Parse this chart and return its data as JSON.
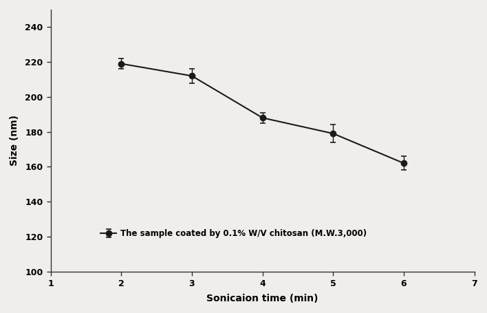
{
  "x": [
    2,
    3,
    4,
    5,
    6
  ],
  "y": [
    219,
    212,
    188,
    179,
    162
  ],
  "yerr": [
    3,
    4,
    3,
    5,
    4
  ],
  "xlabel": "Sonicaion time (min)",
  "ylabel": "Size (nm)",
  "legend_label": "The sample coated by 0.1% W/V chitosan (M.W.3,000)",
  "xlim": [
    1,
    7
  ],
  "ylim": [
    100,
    250
  ],
  "yticks": [
    100,
    120,
    140,
    160,
    180,
    200,
    220,
    240
  ],
  "xticks": [
    1,
    2,
    3,
    4,
    5,
    6,
    7
  ],
  "line_color": "#1a1a1a",
  "marker_color": "#1a1a1a",
  "marker": "o",
  "marker_size": 6,
  "line_width": 1.5,
  "capsize": 3,
  "background_color": "#f0eeeb",
  "legend_fontsize": 8.5,
  "axis_label_fontsize": 10,
  "tick_fontsize": 9
}
